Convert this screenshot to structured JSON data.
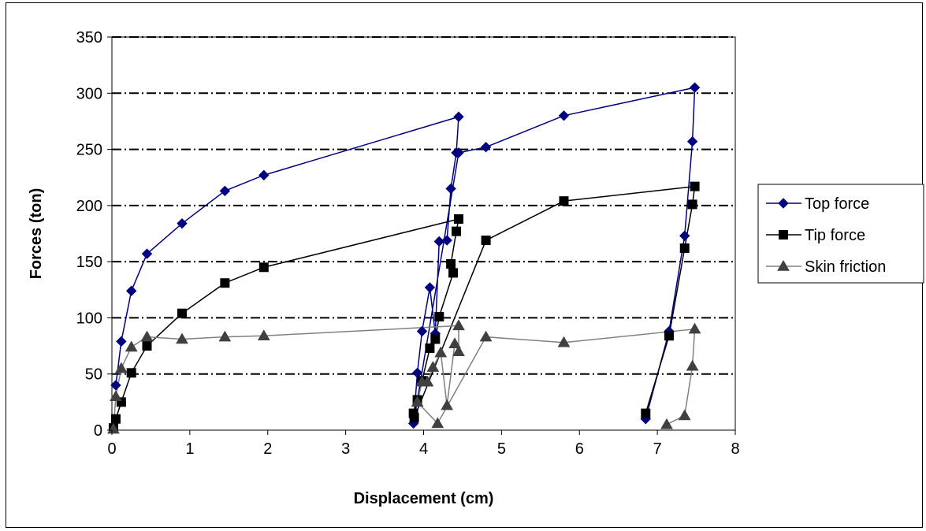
{
  "chart_data": {
    "type": "line",
    "title": "",
    "xlabel": "Displacement (cm)",
    "ylabel": "Forces (ton)",
    "xlim": [
      0,
      8
    ],
    "ylim": [
      0,
      350
    ],
    "x_ticks": [
      0,
      1,
      2,
      3,
      4,
      5,
      6,
      7,
      8
    ],
    "y_ticks": [
      0,
      50,
      100,
      150,
      200,
      250,
      300,
      350
    ],
    "grid": "horizontal dash-dot",
    "legend_position": "right",
    "series": [
      {
        "name": "Top force",
        "color": "#000080",
        "marker": "diamond",
        "points": [
          [
            0.05,
            40
          ],
          [
            0.12,
            79
          ],
          [
            0.25,
            124
          ],
          [
            0.45,
            157
          ],
          [
            0.9,
            184
          ],
          [
            1.45,
            213
          ],
          [
            1.95,
            227
          ],
          [
            4.45,
            279
          ],
          [
            4.42,
            247
          ],
          [
            4.35,
            215
          ],
          [
            4.3,
            169
          ],
          [
            4.2,
            168
          ],
          [
            4.15,
            86
          ],
          [
            4.08,
            127
          ],
          [
            3.98,
            88
          ],
          [
            3.92,
            51
          ],
          [
            3.87,
            6
          ],
          [
            4.45,
            247
          ],
          [
            4.8,
            252
          ],
          [
            5.8,
            280
          ],
          [
            7.48,
            305
          ],
          [
            7.45,
            257
          ],
          [
            7.35,
            173
          ],
          [
            7.15,
            88
          ],
          [
            6.85,
            10
          ]
        ]
      },
      {
        "name": "Tip force",
        "color": "#000000",
        "marker": "square",
        "points": [
          [
            0.02,
            2
          ],
          [
            0.05,
            10
          ],
          [
            0.12,
            25
          ],
          [
            0.25,
            51
          ],
          [
            0.45,
            75
          ],
          [
            0.9,
            104
          ],
          [
            1.45,
            131
          ],
          [
            1.95,
            145
          ],
          [
            4.45,
            188
          ],
          [
            4.42,
            177
          ],
          [
            4.35,
            148
          ],
          [
            4.38,
            140
          ],
          [
            4.2,
            101
          ],
          [
            4.15,
            81
          ],
          [
            4.08,
            73
          ],
          [
            3.98,
            44
          ],
          [
            3.92,
            27
          ],
          [
            3.87,
            15
          ],
          [
            3.88,
            11
          ],
          [
            4.8,
            169
          ],
          [
            5.8,
            204
          ],
          [
            7.48,
            217
          ],
          [
            7.45,
            201
          ],
          [
            7.35,
            162
          ],
          [
            7.15,
            84
          ],
          [
            6.85,
            15
          ]
        ]
      },
      {
        "name": "Skin friction",
        "color": "#808080",
        "marker": "triangle",
        "points": [
          [
            0.02,
            1
          ],
          [
            0.05,
            30
          ],
          [
            0.12,
            55
          ],
          [
            0.25,
            74
          ],
          [
            0.45,
            83
          ],
          [
            0.9,
            81
          ],
          [
            1.45,
            83
          ],
          [
            1.95,
            84
          ],
          [
            4.45,
            93
          ],
          [
            4.45,
            70
          ],
          [
            4.4,
            77
          ],
          [
            4.3,
            22
          ],
          [
            4.22,
            69
          ],
          [
            4.12,
            56
          ],
          [
            4.05,
            43
          ],
          [
            3.98,
            43
          ],
          [
            3.92,
            25
          ],
          [
            4.18,
            6
          ],
          [
            4.8,
            83
          ],
          [
            5.8,
            78
          ],
          [
            7.48,
            90
          ],
          [
            7.45,
            57
          ],
          [
            7.35,
            13
          ],
          [
            7.12,
            5
          ]
        ]
      }
    ]
  }
}
